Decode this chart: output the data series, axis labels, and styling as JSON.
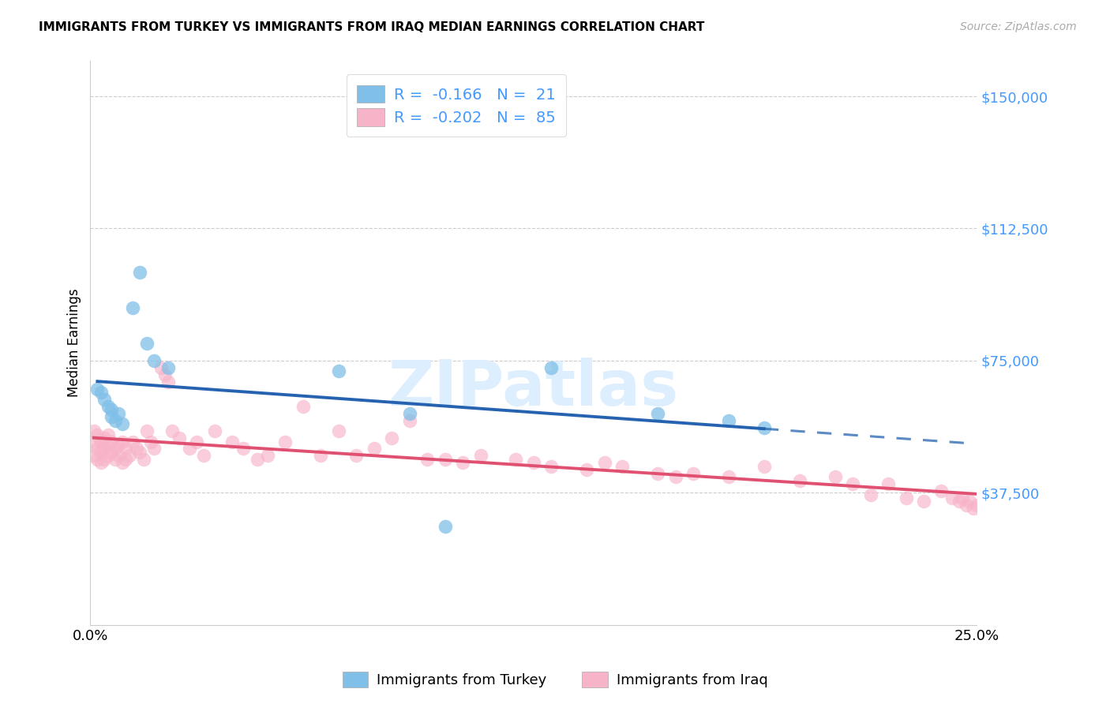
{
  "title": "IMMIGRANTS FROM TURKEY VS IMMIGRANTS FROM IRAQ MEDIAN EARNINGS CORRELATION CHART",
  "source": "Source: ZipAtlas.com",
  "ylabel": "Median Earnings",
  "xlim": [
    0.0,
    0.25
  ],
  "ylim": [
    0,
    160000
  ],
  "legend_r_turkey": "-0.166",
  "legend_n_turkey": "21",
  "legend_r_iraq": "-0.202",
  "legend_n_iraq": "85",
  "color_turkey": "#7fbfe8",
  "color_iraq": "#f7b3c8",
  "color_turkey_line": "#2563b0",
  "color_iraq_line": "#e05070",
  "color_ytick_label": "#4499ff",
  "color_legend_text": "#4499ff",
  "watermark_color": "#ddeeff",
  "turkey_x": [
    0.002,
    0.003,
    0.004,
    0.005,
    0.006,
    0.006,
    0.007,
    0.008,
    0.009,
    0.012,
    0.014,
    0.016,
    0.018,
    0.022,
    0.07,
    0.09,
    0.13,
    0.16,
    0.18,
    0.19,
    0.1
  ],
  "turkey_y": [
    67000,
    66000,
    64000,
    62000,
    61000,
    59000,
    58000,
    60000,
    57000,
    90000,
    100000,
    80000,
    75000,
    73000,
    72000,
    60000,
    73000,
    60000,
    58000,
    56000,
    28000
  ],
  "iraq_x": [
    0.001,
    0.001,
    0.001,
    0.002,
    0.002,
    0.002,
    0.003,
    0.003,
    0.003,
    0.004,
    0.004,
    0.004,
    0.005,
    0.005,
    0.005,
    0.006,
    0.006,
    0.007,
    0.007,
    0.008,
    0.008,
    0.009,
    0.009,
    0.01,
    0.01,
    0.011,
    0.012,
    0.013,
    0.014,
    0.015,
    0.016,
    0.017,
    0.018,
    0.02,
    0.021,
    0.022,
    0.023,
    0.025,
    0.028,
    0.03,
    0.032,
    0.035,
    0.04,
    0.043,
    0.047,
    0.05,
    0.055,
    0.06,
    0.065,
    0.07,
    0.075,
    0.08,
    0.085,
    0.09,
    0.095,
    0.1,
    0.105,
    0.11,
    0.12,
    0.125,
    0.13,
    0.14,
    0.145,
    0.15,
    0.16,
    0.165,
    0.17,
    0.18,
    0.19,
    0.2,
    0.21,
    0.215,
    0.22,
    0.225,
    0.23,
    0.235,
    0.24,
    0.243,
    0.245,
    0.246,
    0.247,
    0.248,
    0.249,
    0.25,
    0.251
  ],
  "iraq_y": [
    55000,
    52000,
    48000,
    54000,
    50000,
    47000,
    52000,
    49000,
    46000,
    53000,
    50000,
    47000,
    54000,
    51000,
    48000,
    52000,
    49000,
    50000,
    47000,
    51000,
    48000,
    52000,
    46000,
    50000,
    47000,
    48000,
    52000,
    50000,
    49000,
    47000,
    55000,
    52000,
    50000,
    73000,
    71000,
    69000,
    55000,
    53000,
    50000,
    52000,
    48000,
    55000,
    52000,
    50000,
    47000,
    48000,
    52000,
    62000,
    48000,
    55000,
    48000,
    50000,
    53000,
    58000,
    47000,
    47000,
    46000,
    48000,
    47000,
    46000,
    45000,
    44000,
    46000,
    45000,
    43000,
    42000,
    43000,
    42000,
    45000,
    41000,
    42000,
    40000,
    37000,
    40000,
    36000,
    35000,
    38000,
    36000,
    35000,
    36000,
    34000,
    35000,
    33000,
    34000,
    33000
  ]
}
